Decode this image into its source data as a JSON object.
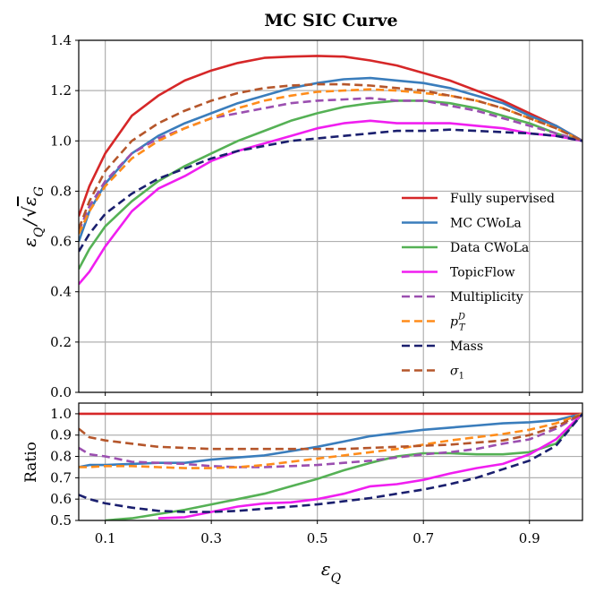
{
  "chart_data": [
    {
      "type": "line",
      "title": "MC SIC Curve",
      "ylabel": "εQ/√εG",
      "xlabel": "",
      "xlim": [
        0.05,
        1.0
      ],
      "ylim": [
        0.0,
        1.4
      ],
      "yticks": [
        "0.0",
        "0.2",
        "0.4",
        "0.6",
        "0.8",
        "1.0",
        "1.2",
        "1.4"
      ],
      "grid": true,
      "legend_position": "lower-right",
      "series": [
        {
          "name": "Fully supervised",
          "color": "#d62728",
          "dash": "solid",
          "x": [
            0.05,
            0.07,
            0.1,
            0.15,
            0.2,
            0.25,
            0.3,
            0.35,
            0.4,
            0.45,
            0.5,
            0.55,
            0.6,
            0.65,
            0.7,
            0.75,
            0.8,
            0.85,
            0.9,
            0.95,
            1.0
          ],
          "y": [
            0.7,
            0.82,
            0.95,
            1.1,
            1.18,
            1.24,
            1.28,
            1.31,
            1.33,
            1.335,
            1.338,
            1.335,
            1.32,
            1.3,
            1.27,
            1.24,
            1.2,
            1.16,
            1.11,
            1.06,
            1.0
          ]
        },
        {
          "name": "MC CWoLa",
          "color": "#3a7dbc",
          "dash": "solid",
          "x": [
            0.05,
            0.07,
            0.1,
            0.15,
            0.2,
            0.25,
            0.3,
            0.35,
            0.4,
            0.45,
            0.5,
            0.55,
            0.6,
            0.65,
            0.7,
            0.75,
            0.8,
            0.85,
            0.9,
            0.95,
            1.0
          ],
          "y": [
            0.6,
            0.72,
            0.83,
            0.95,
            1.02,
            1.07,
            1.11,
            1.15,
            1.18,
            1.21,
            1.23,
            1.245,
            1.25,
            1.24,
            1.23,
            1.21,
            1.18,
            1.15,
            1.1,
            1.06,
            1.0
          ]
        },
        {
          "name": "Data CWoLa",
          "color": "#55b155",
          "dash": "solid",
          "x": [
            0.05,
            0.07,
            0.1,
            0.15,
            0.2,
            0.25,
            0.3,
            0.35,
            0.4,
            0.45,
            0.5,
            0.55,
            0.6,
            0.65,
            0.7,
            0.75,
            0.8,
            0.85,
            0.9,
            0.95,
            1.0
          ],
          "y": [
            0.49,
            0.57,
            0.66,
            0.76,
            0.84,
            0.9,
            0.95,
            1.0,
            1.04,
            1.08,
            1.11,
            1.135,
            1.15,
            1.16,
            1.16,
            1.15,
            1.13,
            1.1,
            1.07,
            1.03,
            1.0
          ]
        },
        {
          "name": "TopicFlow",
          "color": "#f01ef0",
          "dash": "solid",
          "x": [
            0.05,
            0.07,
            0.1,
            0.15,
            0.2,
            0.25,
            0.3,
            0.35,
            0.4,
            0.45,
            0.5,
            0.55,
            0.6,
            0.65,
            0.7,
            0.75,
            0.8,
            0.85,
            0.9,
            0.95,
            1.0
          ],
          "y": [
            0.43,
            0.48,
            0.58,
            0.72,
            0.81,
            0.86,
            0.92,
            0.96,
            0.99,
            1.02,
            1.05,
            1.07,
            1.08,
            1.07,
            1.07,
            1.07,
            1.06,
            1.05,
            1.03,
            1.02,
            1.0
          ]
        },
        {
          "name": "Multiplicity",
          "color": "#9b4fb0",
          "dash": "dashed",
          "x": [
            0.05,
            0.07,
            0.1,
            0.15,
            0.2,
            0.25,
            0.3,
            0.35,
            0.4,
            0.45,
            0.5,
            0.55,
            0.6,
            0.65,
            0.7,
            0.75,
            0.8,
            0.85,
            0.9,
            0.95,
            1.0
          ],
          "y": [
            0.64,
            0.74,
            0.84,
            0.95,
            1.01,
            1.05,
            1.09,
            1.11,
            1.13,
            1.15,
            1.16,
            1.165,
            1.17,
            1.16,
            1.16,
            1.14,
            1.12,
            1.09,
            1.06,
            1.03,
            1.0
          ]
        },
        {
          "name": "pTD",
          "color": "#ff8c1a",
          "dash": "dashed",
          "x": [
            0.05,
            0.07,
            0.1,
            0.15,
            0.2,
            0.25,
            0.3,
            0.35,
            0.4,
            0.45,
            0.5,
            0.55,
            0.6,
            0.65,
            0.7,
            0.75,
            0.8,
            0.85,
            0.9,
            0.95,
            1.0
          ],
          "y": [
            0.63,
            0.72,
            0.82,
            0.93,
            1.0,
            1.05,
            1.09,
            1.13,
            1.16,
            1.18,
            1.195,
            1.2,
            1.205,
            1.2,
            1.19,
            1.18,
            1.16,
            1.13,
            1.09,
            1.05,
            1.0
          ]
        },
        {
          "name": "Mass",
          "color": "#1a1f6e",
          "dash": "dashed",
          "x": [
            0.05,
            0.07,
            0.1,
            0.15,
            0.2,
            0.25,
            0.3,
            0.35,
            0.4,
            0.45,
            0.5,
            0.55,
            0.6,
            0.65,
            0.7,
            0.75,
            0.8,
            0.85,
            0.9,
            0.95,
            1.0
          ],
          "y": [
            0.56,
            0.63,
            0.71,
            0.79,
            0.85,
            0.89,
            0.93,
            0.96,
            0.98,
            1.0,
            1.01,
            1.02,
            1.03,
            1.04,
            1.04,
            1.045,
            1.04,
            1.035,
            1.03,
            1.02,
            1.0
          ]
        },
        {
          "name": "σ1",
          "color": "#b5562b",
          "dash": "dashed",
          "x": [
            0.05,
            0.07,
            0.1,
            0.15,
            0.2,
            0.25,
            0.3,
            0.35,
            0.4,
            0.45,
            0.5,
            0.55,
            0.6,
            0.65,
            0.7,
            0.75,
            0.8,
            0.85,
            0.9,
            0.95,
            1.0
          ],
          "y": [
            0.65,
            0.76,
            0.88,
            1.0,
            1.07,
            1.12,
            1.16,
            1.19,
            1.21,
            1.22,
            1.225,
            1.225,
            1.22,
            1.21,
            1.2,
            1.18,
            1.16,
            1.13,
            1.09,
            1.05,
            1.0
          ]
        }
      ]
    },
    {
      "type": "line",
      "title": "",
      "ylabel": "Ratio",
      "xlabel": "εQ",
      "xlim": [
        0.05,
        1.0
      ],
      "ylim": [
        0.5,
        1.05
      ],
      "xticks": [
        "0.1",
        "0.3",
        "0.5",
        "0.7",
        "0.9"
      ],
      "yticks": [
        "0.5",
        "0.6",
        "0.7",
        "0.8",
        "0.9",
        "1.0"
      ],
      "grid": true,
      "series": [
        {
          "name": "Fully supervised",
          "color": "#d62728",
          "dash": "solid",
          "x": [
            0.05,
            1.0
          ],
          "y": [
            1.0,
            1.0
          ]
        },
        {
          "name": "MC CWoLa",
          "color": "#3a7dbc",
          "dash": "solid",
          "x": [
            0.05,
            0.07,
            0.1,
            0.15,
            0.2,
            0.25,
            0.3,
            0.35,
            0.4,
            0.45,
            0.5,
            0.55,
            0.6,
            0.65,
            0.7,
            0.75,
            0.8,
            0.85,
            0.9,
            0.95,
            1.0
          ],
          "y": [
            0.75,
            0.76,
            0.76,
            0.765,
            0.77,
            0.77,
            0.785,
            0.795,
            0.805,
            0.825,
            0.845,
            0.87,
            0.895,
            0.91,
            0.925,
            0.935,
            0.945,
            0.955,
            0.96,
            0.97,
            1.0
          ]
        },
        {
          "name": "Data CWoLa",
          "color": "#55b155",
          "dash": "solid",
          "x": [
            0.1,
            0.15,
            0.2,
            0.25,
            0.3,
            0.35,
            0.4,
            0.45,
            0.5,
            0.55,
            0.6,
            0.65,
            0.7,
            0.75,
            0.8,
            0.85,
            0.9,
            0.95,
            1.0
          ],
          "y": [
            0.5,
            0.51,
            0.53,
            0.55,
            0.575,
            0.6,
            0.625,
            0.66,
            0.695,
            0.735,
            0.77,
            0.8,
            0.815,
            0.815,
            0.81,
            0.81,
            0.82,
            0.86,
            1.0
          ]
        },
        {
          "name": "TopicFlow",
          "color": "#f01ef0",
          "dash": "solid",
          "x": [
            0.2,
            0.25,
            0.3,
            0.35,
            0.4,
            0.45,
            0.5,
            0.55,
            0.6,
            0.65,
            0.7,
            0.75,
            0.8,
            0.85,
            0.9,
            0.95,
            1.0
          ],
          "y": [
            0.51,
            0.515,
            0.54,
            0.565,
            0.58,
            0.585,
            0.6,
            0.625,
            0.66,
            0.67,
            0.69,
            0.72,
            0.745,
            0.765,
            0.81,
            0.88,
            1.0
          ]
        },
        {
          "name": "Multiplicity",
          "color": "#9b4fb0",
          "dash": "dashed",
          "x": [
            0.05,
            0.07,
            0.1,
            0.15,
            0.2,
            0.25,
            0.3,
            0.35,
            0.4,
            0.45,
            0.5,
            0.55,
            0.6,
            0.65,
            0.7,
            0.75,
            0.8,
            0.85,
            0.9,
            0.95,
            1.0
          ],
          "y": [
            0.84,
            0.81,
            0.8,
            0.775,
            0.77,
            0.765,
            0.755,
            0.75,
            0.75,
            0.755,
            0.76,
            0.77,
            0.78,
            0.795,
            0.81,
            0.82,
            0.835,
            0.86,
            0.88,
            0.93,
            1.0
          ]
        },
        {
          "name": "pTD",
          "color": "#ff8c1a",
          "dash": "dashed",
          "x": [
            0.05,
            0.07,
            0.1,
            0.15,
            0.2,
            0.25,
            0.3,
            0.35,
            0.4,
            0.45,
            0.5,
            0.55,
            0.6,
            0.65,
            0.7,
            0.75,
            0.8,
            0.85,
            0.9,
            0.95,
            1.0
          ],
          "y": [
            0.75,
            0.75,
            0.755,
            0.755,
            0.75,
            0.745,
            0.745,
            0.75,
            0.76,
            0.775,
            0.79,
            0.805,
            0.82,
            0.835,
            0.855,
            0.875,
            0.89,
            0.905,
            0.925,
            0.955,
            1.0
          ]
        },
        {
          "name": "Mass",
          "color": "#1a1f6e",
          "dash": "dashed",
          "x": [
            0.05,
            0.07,
            0.1,
            0.15,
            0.2,
            0.25,
            0.3,
            0.35,
            0.4,
            0.45,
            0.5,
            0.55,
            0.6,
            0.65,
            0.7,
            0.75,
            0.8,
            0.85,
            0.9,
            0.95,
            1.0
          ],
          "y": [
            0.62,
            0.6,
            0.58,
            0.56,
            0.545,
            0.54,
            0.54,
            0.545,
            0.555,
            0.565,
            0.575,
            0.59,
            0.605,
            0.625,
            0.645,
            0.67,
            0.7,
            0.74,
            0.78,
            0.85,
            1.0
          ]
        },
        {
          "name": "σ1",
          "color": "#b5562b",
          "dash": "dashed",
          "x": [
            0.05,
            0.07,
            0.1,
            0.15,
            0.2,
            0.25,
            0.3,
            0.35,
            0.4,
            0.45,
            0.5,
            0.55,
            0.6,
            0.65,
            0.7,
            0.75,
            0.8,
            0.85,
            0.9,
            0.95,
            1.0
          ],
          "y": [
            0.93,
            0.89,
            0.875,
            0.86,
            0.845,
            0.84,
            0.835,
            0.835,
            0.835,
            0.835,
            0.835,
            0.835,
            0.84,
            0.845,
            0.85,
            0.855,
            0.865,
            0.875,
            0.9,
            0.94,
            1.0
          ]
        }
      ]
    }
  ],
  "legend": [
    {
      "label": "Fully supervised",
      "sub": "",
      "color": "#d62728",
      "dash": "solid"
    },
    {
      "label": "MC CWoLa",
      "sub": "",
      "color": "#3a7dbc",
      "dash": "solid"
    },
    {
      "label": "Data CWoLa",
      "sub": "",
      "color": "#55b155",
      "dash": "solid"
    },
    {
      "label": "TopicFlow",
      "sub": "",
      "color": "#f01ef0",
      "dash": "solid"
    },
    {
      "label": "Multiplicity",
      "sub": "",
      "color": "#9b4fb0",
      "dash": "dashed"
    },
    {
      "label": "p",
      "sub": "T",
      "sup": "D",
      "color": "#ff8c1a",
      "dash": "dashed"
    },
    {
      "label": "Mass",
      "sub": "",
      "color": "#1a1f6e",
      "dash": "dashed"
    },
    {
      "label": "σ",
      "sub": "1",
      "color": "#b5562b",
      "dash": "dashed"
    }
  ]
}
